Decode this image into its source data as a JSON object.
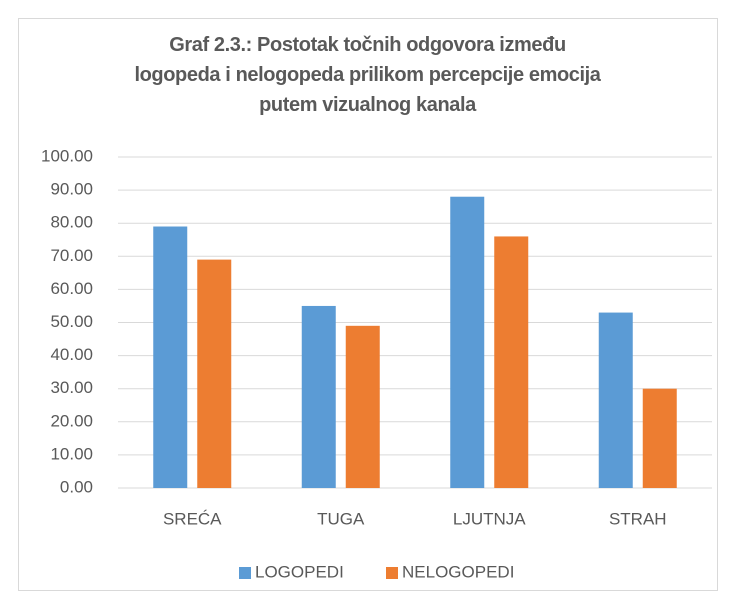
{
  "chart_data": {
    "type": "bar",
    "title": "Graf 2.3.: Postotak točnih odgovora između\nlogopeda i nelogopeda prilikom percepcije emocija\nputem vizualnog kanala",
    "categories": [
      "SREĆA",
      "TUGA",
      "LJUTNJA",
      "STRAH"
    ],
    "series": [
      {
        "name": "LOGOPEDI",
        "color": "#5b9bd5",
        "values": [
          79,
          55,
          88,
          53
        ]
      },
      {
        "name": "NELOGOPEDI",
        "color": "#ed7d31",
        "values": [
          69,
          49,
          76,
          30
        ]
      }
    ],
    "ylim": [
      0,
      100
    ],
    "yticks": [
      {
        "value": 0,
        "label": "0.00"
      },
      {
        "value": 10,
        "label": "10.00"
      },
      {
        "value": 20,
        "label": "20.00"
      },
      {
        "value": 30,
        "label": "30.00"
      },
      {
        "value": 40,
        "label": "40.00"
      },
      {
        "value": 50,
        "label": "50.00"
      },
      {
        "value": 60,
        "label": "60.00"
      },
      {
        "value": 70,
        "label": "70.00"
      },
      {
        "value": 80,
        "label": "80.00"
      },
      {
        "value": 90,
        "label": "90.00"
      },
      {
        "value": 100,
        "label": "100.00"
      }
    ],
    "grid": true,
    "legend": "bottom"
  }
}
